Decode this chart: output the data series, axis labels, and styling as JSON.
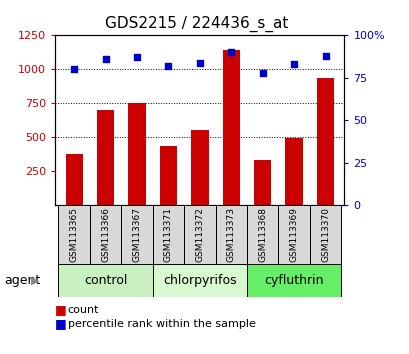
{
  "title": "GDS2215 / 224436_s_at",
  "samples": [
    "GSM113365",
    "GSM113366",
    "GSM113367",
    "GSM113371",
    "GSM113372",
    "GSM113373",
    "GSM113368",
    "GSM113369",
    "GSM113370"
  ],
  "bar_values": [
    375,
    700,
    755,
    440,
    555,
    1145,
    330,
    495,
    935
  ],
  "percentile_values": [
    80,
    86,
    87,
    82,
    84,
    90,
    78,
    83,
    88
  ],
  "groups": [
    {
      "label": "control",
      "indices": [
        0,
        1,
        2
      ],
      "color": "#c8f0c0"
    },
    {
      "label": "chlorpyrifos",
      "indices": [
        3,
        4,
        5
      ],
      "color": "#d8f8d0"
    },
    {
      "label": "cyfluthrin",
      "indices": [
        6,
        7,
        8
      ],
      "color": "#66ee66"
    }
  ],
  "bar_color": "#cc0000",
  "dot_color": "#0000cc",
  "left_axis_color": "#cc0000",
  "right_axis_color": "#0000cc",
  "ylim_left": [
    0,
    1250
  ],
  "ylim_right": [
    0,
    100
  ],
  "left_yticks": [
    250,
    500,
    750,
    1000,
    1250
  ],
  "right_yticks": [
    0,
    25,
    50,
    75,
    100
  ],
  "right_yticklabels": [
    "0",
    "25",
    "50",
    "75",
    "100%"
  ],
  "grid_values": [
    500,
    750,
    1000
  ],
  "background_color": "#ffffff",
  "bar_width": 0.55,
  "xlabel_agent": "agent",
  "legend_bar_label": "count",
  "legend_dot_label": "percentile rank within the sample",
  "sample_box_color": "#d8d8d8",
  "title_fontsize": 11,
  "tick_fontsize": 8,
  "sample_fontsize": 6.5,
  "group_fontsize": 9,
  "legend_fontsize": 8,
  "agent_fontsize": 9
}
